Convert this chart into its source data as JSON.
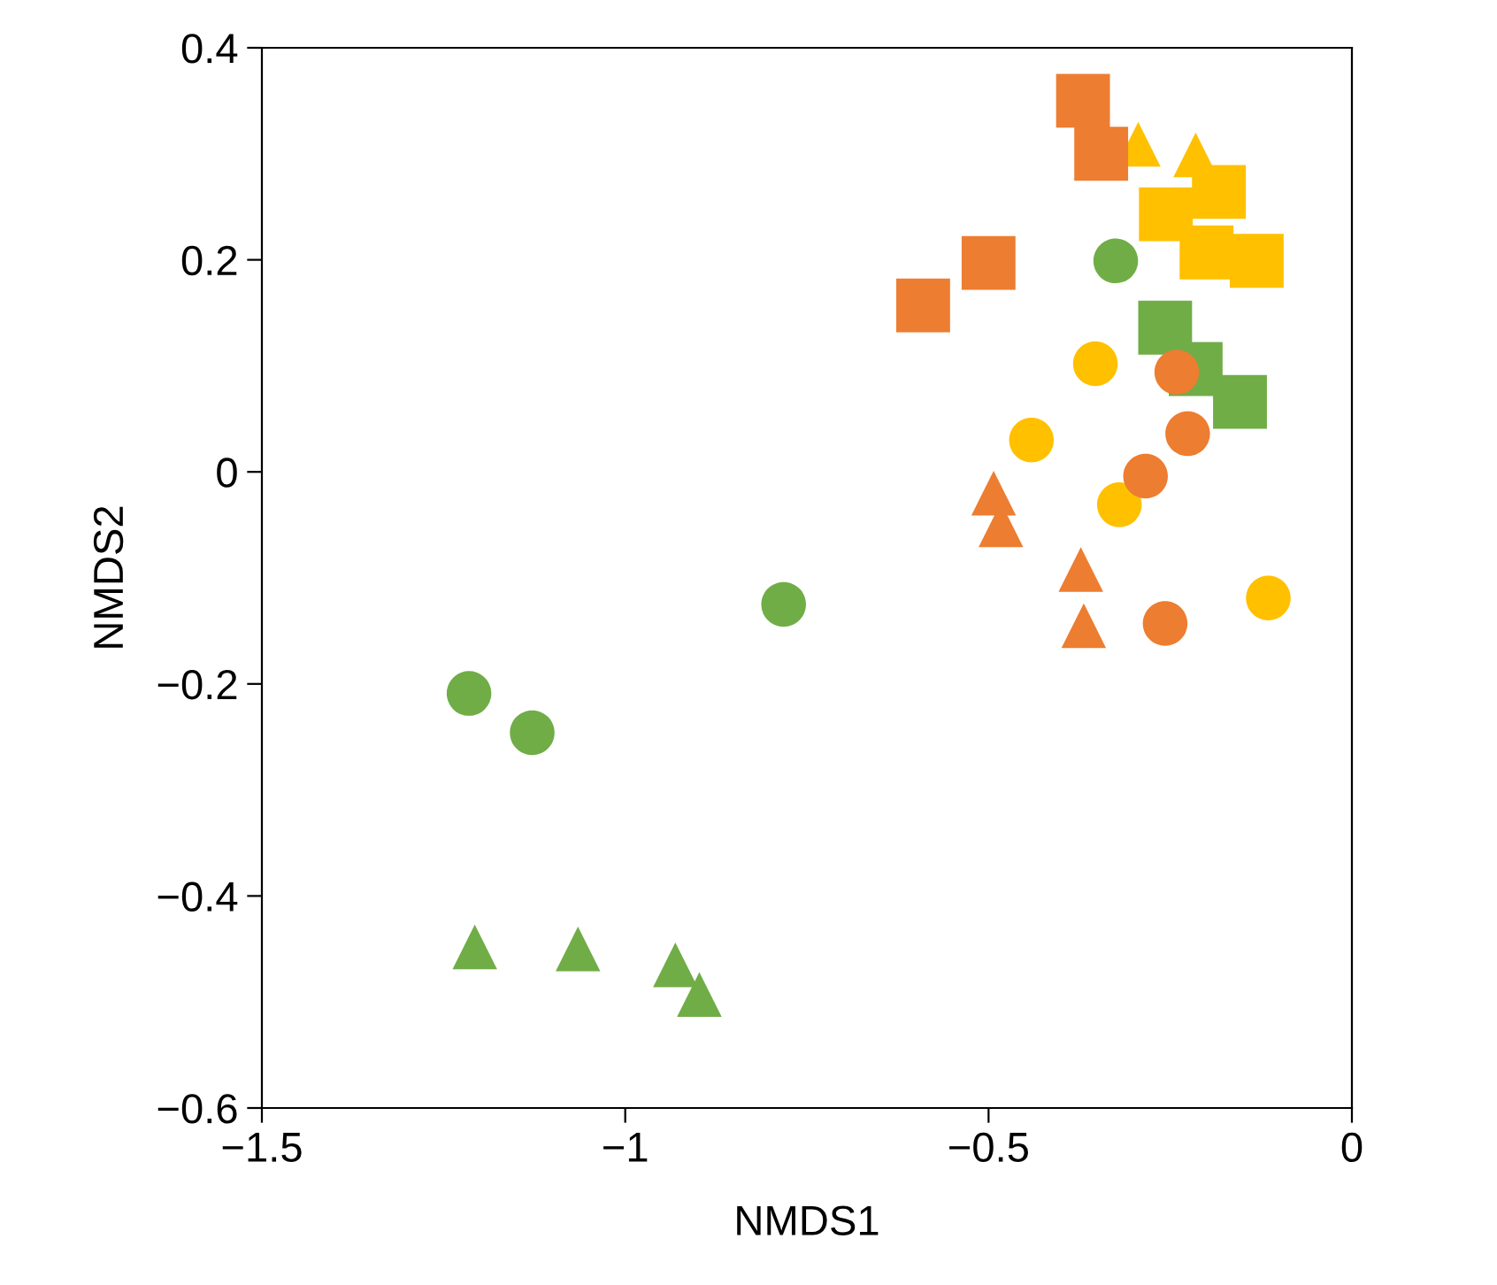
{
  "chart_data": {
    "type": "scatter",
    "xlabel": "NMDS1",
    "ylabel": "NMDS2",
    "xlim": [
      -1.5,
      0
    ],
    "ylim": [
      -0.6,
      0.4
    ],
    "xticks": [
      -1.5,
      -1,
      -0.5,
      0
    ],
    "yticks": [
      -0.6,
      -0.4,
      -0.2,
      0,
      0.2,
      0.4
    ],
    "grid": false,
    "series": [
      {
        "color": "#ffc000",
        "marker": "triangle",
        "x": [
          -0.294,
          -0.215
        ],
        "values": [
          0.309,
          0.299
        ]
      },
      {
        "color": "#ed7d31",
        "marker": "square",
        "x": [
          -0.37,
          -0.345,
          -0.5,
          -0.59
        ],
        "values": [
          0.35,
          0.3,
          0.197,
          0.157
        ]
      },
      {
        "color": "#ffc000",
        "marker": "square",
        "x": [
          -0.256,
          -0.183,
          -0.2,
          -0.131
        ],
        "values": [
          0.243,
          0.264,
          0.207,
          0.199
        ]
      },
      {
        "color": "#70ad47",
        "marker": "square",
        "x": [
          -0.257,
          -0.215,
          -0.154
        ],
        "values": [
          0.136,
          0.097,
          0.066
        ]
      },
      {
        "color": "#ed7d31",
        "marker": "triangle",
        "x": [
          -0.493,
          -0.483,
          -0.373,
          -0.369
        ],
        "values": [
          -0.02,
          -0.05,
          -0.092,
          -0.145
        ]
      },
      {
        "color": "#70ad47",
        "marker": "triangle",
        "x": [
          -1.207,
          -1.065,
          -0.931,
          -0.898
        ],
        "values": [
          -0.448,
          -0.45,
          -0.465,
          -0.493
        ]
      },
      {
        "color": "#ffc000",
        "marker": "circle",
        "x": [
          -0.353,
          -0.441,
          -0.32,
          -0.115
        ],
        "values": [
          0.102,
          0.03,
          -0.031,
          -0.119
        ]
      },
      {
        "color": "#ed7d31",
        "marker": "circle",
        "x": [
          -0.241,
          -0.226,
          -0.284,
          -0.257
        ],
        "values": [
          0.094,
          0.036,
          -0.004,
          -0.143
        ]
      },
      {
        "color": "#70ad47",
        "marker": "circle",
        "x": [
          -0.325,
          -0.782,
          -1.215,
          -1.128
        ],
        "values": [
          0.199,
          -0.125,
          -0.209,
          -0.246
        ]
      }
    ]
  }
}
